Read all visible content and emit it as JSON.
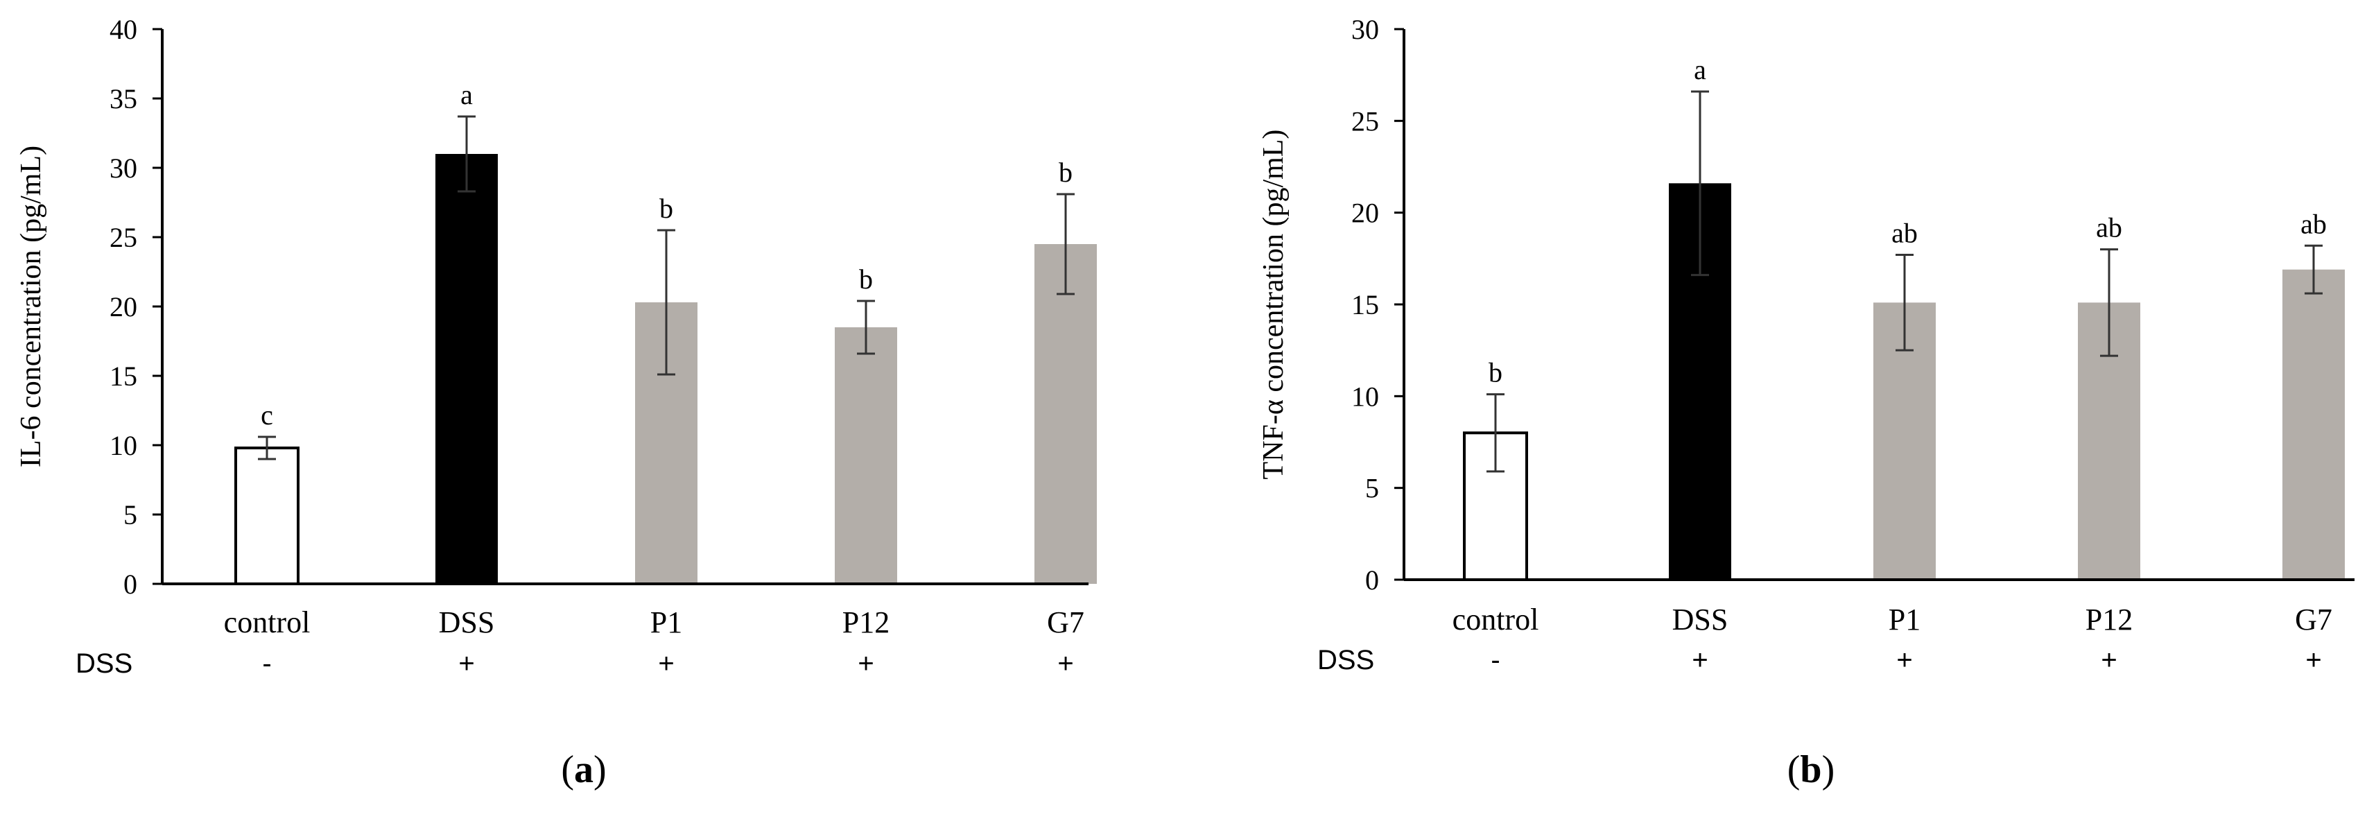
{
  "treatment_row_label": "DSS",
  "chart_data": [
    {
      "panel_label": "(a)",
      "type": "bar",
      "categories": [
        "control",
        "DSS",
        "P1",
        "P12",
        "G7"
      ],
      "dss_treatment": [
        "-",
        "+",
        "+",
        "+",
        "+"
      ],
      "values": [
        9.8,
        31.0,
        20.3,
        18.5,
        24.5
      ],
      "errors": [
        0.8,
        2.7,
        5.2,
        1.9,
        3.6
      ],
      "significance": [
        "c",
        "a",
        "b",
        "b",
        "b"
      ],
      "bar_colors": [
        "#ffffff",
        "#000000",
        "#b3aea9",
        "#b3aea9",
        "#b3aea9"
      ],
      "ylabel": "IL-6 concentration (pg/mL)",
      "xlabel": "",
      "ylim": [
        0,
        40
      ],
      "yticks": [
        0,
        5,
        10,
        15,
        20,
        25,
        30,
        35,
        40
      ]
    },
    {
      "panel_label": "(b)",
      "type": "bar",
      "categories": [
        "control",
        "DSS",
        "P1",
        "P12",
        "G7"
      ],
      "dss_treatment": [
        "-",
        "+",
        "+",
        "+",
        "+"
      ],
      "values": [
        8.0,
        21.6,
        15.1,
        15.1,
        16.9
      ],
      "errors": [
        2.1,
        5.0,
        2.6,
        2.9,
        1.3
      ],
      "significance": [
        "b",
        "a",
        "ab",
        "ab",
        "ab"
      ],
      "bar_colors": [
        "#ffffff",
        "#000000",
        "#b3aea9",
        "#b3aea9",
        "#b3aea9"
      ],
      "ylabel": "TNF-α concentration (pg/mL)",
      "xlabel": "",
      "ylim": [
        0,
        30
      ],
      "yticks": [
        0,
        5,
        10,
        15,
        20,
        25,
        30
      ]
    }
  ]
}
